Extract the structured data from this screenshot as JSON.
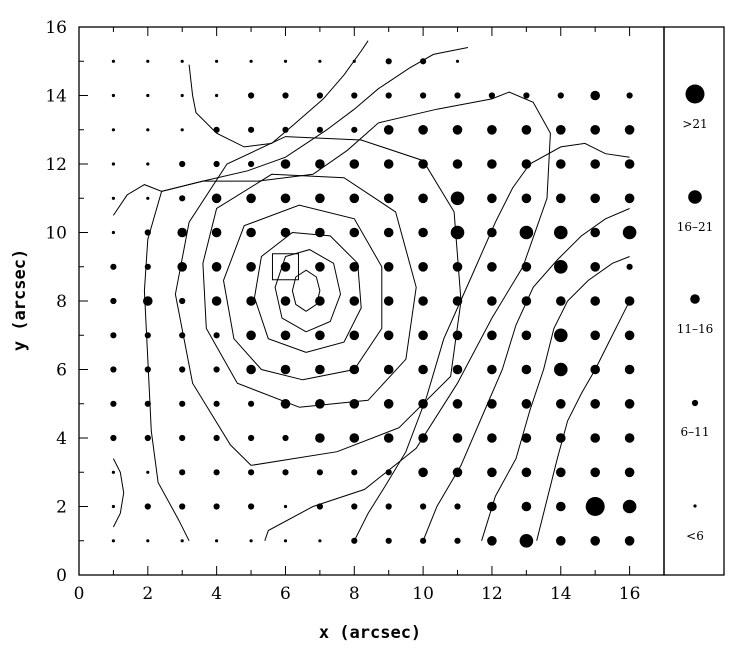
{
  "chart_data": {
    "type": "scatter",
    "title": "",
    "xlabel": "x (arcsec)",
    "ylabel": "y (arcsec)",
    "xlim": [
      0,
      17
    ],
    "ylim": [
      0,
      16
    ],
    "xticks": [
      0,
      2,
      4,
      6,
      8,
      10,
      12,
      14,
      16
    ],
    "yticks": [
      0,
      2,
      4,
      6,
      8,
      10,
      12,
      14,
      16
    ],
    "grid": false,
    "legend_position": "right",
    "legend": [
      {
        "label": ">21",
        "size_class": 5
      },
      {
        "label": "16–21",
        "size_class": 4
      },
      {
        "label": "11–16",
        "size_class": 3
      },
      {
        "label": "6–11",
        "size_class": 2
      },
      {
        "label": "<6",
        "size_class": 1
      }
    ],
    "size_classes": {
      "1": "<6",
      "2": "6-11",
      "3": "11-16",
      "4": "16-21",
      "5": ">21"
    },
    "points_x": [
      1,
      2,
      3,
      4,
      5,
      6,
      7,
      8,
      9,
      10,
      11,
      12,
      13,
      14,
      15,
      16
    ],
    "points_rows": [
      {
        "y": 15,
        "classes": [
          1,
          1,
          1,
          1,
          1,
          1,
          1,
          1,
          2,
          2,
          1,
          0,
          0,
          0,
          0,
          0
        ]
      },
      {
        "y": 14,
        "classes": [
          1,
          1,
          1,
          1,
          2,
          2,
          2,
          2,
          2,
          2,
          2,
          2,
          2,
          2,
          3,
          2
        ]
      },
      {
        "y": 13,
        "classes": [
          1,
          1,
          1,
          2,
          2,
          2,
          2,
          2,
          3,
          3,
          3,
          3,
          3,
          3,
          3,
          3
        ]
      },
      {
        "y": 12,
        "classes": [
          1,
          1,
          2,
          2,
          2,
          3,
          3,
          3,
          3,
          3,
          3,
          3,
          3,
          3,
          3,
          3
        ]
      },
      {
        "y": 11,
        "classes": [
          1,
          1,
          2,
          3,
          3,
          3,
          3,
          3,
          3,
          3,
          4,
          3,
          3,
          3,
          3,
          3
        ]
      },
      {
        "y": 10,
        "classes": [
          1,
          2,
          3,
          3,
          3,
          3,
          3,
          3,
          3,
          3,
          4,
          3,
          4,
          4,
          3,
          4
        ]
      },
      {
        "y": 9,
        "classes": [
          2,
          2,
          3,
          3,
          3,
          3,
          3,
          3,
          3,
          3,
          3,
          3,
          3,
          4,
          3,
          2
        ]
      },
      {
        "y": 8,
        "classes": [
          2,
          3,
          2,
          3,
          3,
          3,
          3,
          3,
          3,
          3,
          3,
          3,
          3,
          3,
          3,
          3
        ]
      },
      {
        "y": 7,
        "classes": [
          2,
          2,
          2,
          2,
          3,
          3,
          3,
          3,
          3,
          3,
          3,
          3,
          3,
          4,
          3,
          3
        ]
      },
      {
        "y": 6,
        "classes": [
          2,
          2,
          2,
          2,
          3,
          3,
          3,
          3,
          3,
          3,
          3,
          3,
          3,
          4,
          3,
          3
        ]
      },
      {
        "y": 5,
        "classes": [
          2,
          2,
          2,
          2,
          2,
          3,
          3,
          3,
          3,
          3,
          3,
          3,
          3,
          3,
          3,
          3
        ]
      },
      {
        "y": 4,
        "classes": [
          2,
          2,
          2,
          2,
          2,
          2,
          3,
          3,
          3,
          3,
          3,
          3,
          3,
          3,
          3,
          3
        ]
      },
      {
        "y": 3,
        "classes": [
          1,
          1,
          2,
          2,
          2,
          2,
          2,
          2,
          2,
          3,
          3,
          3,
          3,
          3,
          3,
          3
        ]
      },
      {
        "y": 2,
        "classes": [
          1,
          2,
          2,
          2,
          2,
          1,
          2,
          2,
          2,
          2,
          2,
          3,
          3,
          3,
          5,
          4
        ]
      },
      {
        "y": 1,
        "classes": [
          1,
          1,
          1,
          1,
          1,
          1,
          1,
          2,
          2,
          2,
          2,
          3,
          4,
          3,
          3,
          3
        ]
      }
    ],
    "highlight_box_center": {
      "x": 6,
      "y": 9
    },
    "contours": [
      [
        [
          6.6,
          7.7
        ],
        [
          6.9,
          7.9
        ],
        [
          7.0,
          8.3
        ],
        [
          6.9,
          8.7
        ],
        [
          6.6,
          8.9
        ],
        [
          6.3,
          8.7
        ],
        [
          6.2,
          8.3
        ],
        [
          6.3,
          7.9
        ],
        [
          6.6,
          7.7
        ]
      ],
      [
        [
          6.6,
          7.1
        ],
        [
          7.3,
          7.4
        ],
        [
          7.6,
          8.2
        ],
        [
          7.4,
          9.1
        ],
        [
          6.7,
          9.5
        ],
        [
          6.0,
          9.3
        ],
        [
          5.7,
          8.4
        ],
        [
          5.9,
          7.5
        ],
        [
          6.6,
          7.1
        ]
      ],
      [
        [
          6.6,
          6.5
        ],
        [
          7.7,
          6.8
        ],
        [
          8.2,
          7.8
        ],
        [
          8.1,
          9.1
        ],
        [
          7.3,
          9.9
        ],
        [
          6.2,
          10.0
        ],
        [
          5.3,
          9.3
        ],
        [
          5.1,
          8.1
        ],
        [
          5.5,
          6.9
        ],
        [
          6.6,
          6.5
        ]
      ],
      [
        [
          6.5,
          5.7
        ],
        [
          8.0,
          6.0
        ],
        [
          8.8,
          7.2
        ],
        [
          8.8,
          9.0
        ],
        [
          8.0,
          10.4
        ],
        [
          6.4,
          10.8
        ],
        [
          4.8,
          10.2
        ],
        [
          4.2,
          8.6
        ],
        [
          4.5,
          6.9
        ],
        [
          5.3,
          6.0
        ],
        [
          6.5,
          5.7
        ]
      ],
      [
        [
          6.4,
          4.9
        ],
        [
          8.4,
          5.1
        ],
        [
          9.5,
          6.3
        ],
        [
          9.8,
          8.4
        ],
        [
          9.2,
          10.6
        ],
        [
          7.7,
          11.6
        ],
        [
          5.6,
          11.7
        ],
        [
          4.0,
          10.7
        ],
        [
          3.6,
          9.1
        ],
        [
          3.7,
          7.2
        ],
        [
          4.6,
          5.6
        ],
        [
          6.4,
          4.9
        ]
      ],
      [
        [
          5.0,
          3.2
        ],
        [
          7.5,
          3.6
        ],
        [
          9.3,
          4.3
        ],
        [
          10.8,
          5.8
        ],
        [
          11.1,
          8.0
        ],
        [
          10.9,
          10.6
        ],
        [
          10.0,
          12.1
        ],
        [
          8.2,
          12.7
        ],
        [
          6.0,
          12.8
        ],
        [
          4.3,
          12.0
        ],
        [
          3.2,
          10.3
        ],
        [
          2.8,
          8.2
        ],
        [
          3.3,
          5.6
        ],
        [
          4.4,
          3.8
        ],
        [
          5.0,
          3.2
        ]
      ],
      [
        [
          3.2,
          1.0
        ],
        [
          2.9,
          1.6
        ],
        [
          2.3,
          2.7
        ],
        [
          2.1,
          4.2
        ],
        [
          2.0,
          6.3
        ],
        [
          1.9,
          8.3
        ],
        [
          2.0,
          9.8
        ],
        [
          2.4,
          11.2
        ],
        [
          3.6,
          11.5
        ],
        [
          5.2,
          11.5
        ],
        [
          6.8,
          11.7
        ],
        [
          7.8,
          12.4
        ],
        [
          8.7,
          13.2
        ],
        [
          10.4,
          13.6
        ],
        [
          12.0,
          13.9
        ],
        [
          12.5,
          14.1
        ],
        [
          13.2,
          13.8
        ],
        [
          13.7,
          12.9
        ],
        [
          13.6,
          11.0
        ],
        [
          12.9,
          9.0
        ],
        [
          12.0,
          7.5
        ],
        [
          11.0,
          5.6
        ],
        [
          9.8,
          3.7
        ],
        [
          8.3,
          2.5
        ],
        [
          6.8,
          2.0
        ],
        [
          5.5,
          1.3
        ],
        [
          5.4,
          1.0
        ]
      ],
      [
        [
          1.0,
          10.5
        ],
        [
          1.4,
          11.1
        ],
        [
          1.9,
          11.4
        ],
        [
          2.4,
          11.2
        ],
        [
          3.6,
          11.5
        ],
        [
          4.9,
          11.8
        ],
        [
          6.0,
          12.2
        ],
        [
          7.2,
          13.0
        ],
        [
          8.0,
          13.6
        ],
        [
          8.7,
          14.2
        ],
        [
          9.6,
          14.8
        ],
        [
          10.3,
          15.2
        ],
        [
          11.3,
          15.4
        ]
      ],
      [
        [
          3.2,
          14.9
        ],
        [
          3.3,
          14.0
        ],
        [
          3.4,
          13.5
        ],
        [
          4.0,
          12.9
        ],
        [
          4.8,
          12.5
        ],
        [
          5.6,
          12.6
        ],
        [
          6.3,
          13.2
        ],
        [
          7.1,
          13.9
        ],
        [
          7.7,
          14.6
        ],
        [
          8.2,
          15.3
        ],
        [
          8.4,
          15.6
        ]
      ],
      [
        [
          8.0,
          1.0
        ],
        [
          8.4,
          1.8
        ],
        [
          8.9,
          2.6
        ],
        [
          9.5,
          3.6
        ],
        [
          10.1,
          5.2
        ],
        [
          10.6,
          6.9
        ],
        [
          11.4,
          8.7
        ],
        [
          12.1,
          10.3
        ],
        [
          12.6,
          11.3
        ],
        [
          13.1,
          12.0
        ],
        [
          14.0,
          12.5
        ],
        [
          14.7,
          12.6
        ],
        [
          15.3,
          12.3
        ],
        [
          16.0,
          12.2
        ]
      ],
      [
        [
          10.0,
          1.0
        ],
        [
          10.4,
          2.0
        ],
        [
          11.1,
          3.2
        ],
        [
          11.7,
          4.6
        ],
        [
          12.3,
          6.0
        ],
        [
          12.7,
          7.3
        ],
        [
          13.2,
          8.4
        ],
        [
          13.9,
          9.2
        ],
        [
          14.6,
          9.9
        ],
        [
          15.3,
          10.4
        ],
        [
          16.0,
          10.7
        ]
      ],
      [
        [
          11.7,
          1.0
        ],
        [
          12.1,
          2.3
        ],
        [
          12.7,
          3.4
        ],
        [
          13.1,
          4.8
        ],
        [
          13.5,
          6.0
        ],
        [
          13.8,
          7.2
        ],
        [
          14.2,
          8.0
        ],
        [
          14.8,
          8.6
        ],
        [
          15.5,
          9.1
        ],
        [
          16.0,
          9.3
        ]
      ],
      [
        [
          13.3,
          1.0
        ],
        [
          13.6,
          2.2
        ],
        [
          13.9,
          3.4
        ],
        [
          14.2,
          4.5
        ],
        [
          14.6,
          5.3
        ],
        [
          15.0,
          6.0
        ],
        [
          15.4,
          6.8
        ],
        [
          15.8,
          7.6
        ],
        [
          16.0,
          8.0
        ]
      ],
      [
        [
          1.0,
          3.4
        ],
        [
          1.2,
          3.0
        ],
        [
          1.3,
          2.4
        ],
        [
          1.2,
          1.8
        ],
        [
          1.0,
          1.4
        ]
      ]
    ]
  }
}
